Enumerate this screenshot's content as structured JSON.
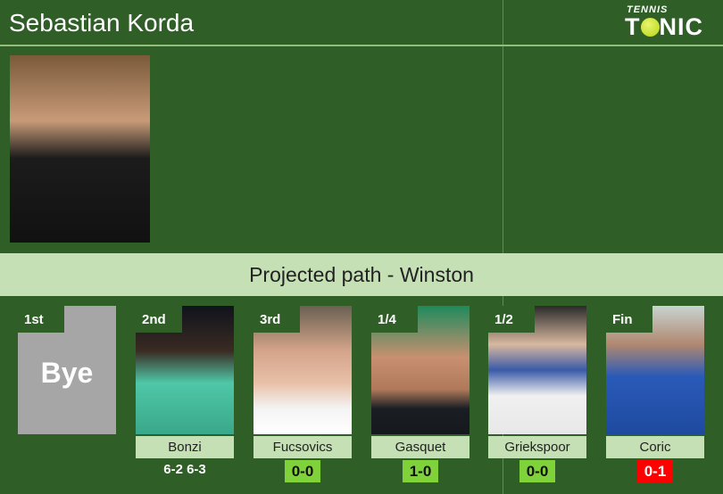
{
  "header": {
    "title": "Sebastian Korda",
    "logo_top": "TENNIS",
    "logo_bottom_1": "T",
    "logo_bottom_2": "NIC"
  },
  "banner": {
    "text": "Projected path - Winston"
  },
  "colors": {
    "background": "#2f5e27",
    "banner": "#c5e0b4",
    "win": "#7fd23a",
    "loss": "#ff0000"
  },
  "rounds": [
    {
      "round": "1st",
      "bye": "Bye"
    },
    {
      "round": "2nd",
      "name": "Bonzi",
      "result": "6-2 6-3"
    },
    {
      "round": "3rd",
      "name": "Fucsovics",
      "score": "0-0",
      "status": "win"
    },
    {
      "round": "1/4",
      "name": "Gasquet",
      "score": "1-0",
      "status": "win"
    },
    {
      "round": "1/2",
      "name": "Griekspoor",
      "score": "0-0",
      "status": "win"
    },
    {
      "round": "Fin",
      "name": "Coric",
      "score": "0-1",
      "status": "loss"
    }
  ]
}
